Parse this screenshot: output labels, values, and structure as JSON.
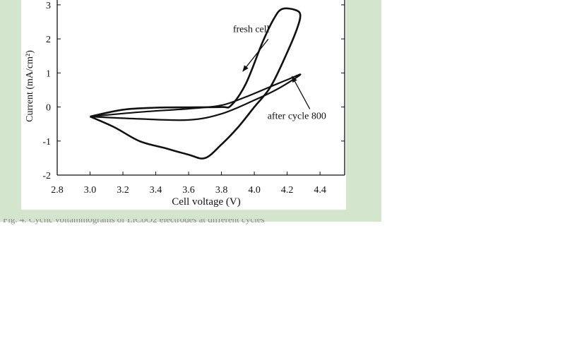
{
  "chart_data": {
    "type": "line",
    "title": "",
    "xlabel": "Cell voltage (V)",
    "ylabel": "Current (mA/cm²)",
    "xlim": [
      2.8,
      4.55
    ],
    "ylim": [
      -2,
      3.35
    ],
    "xticks": [
      "2.8",
      "3.0",
      "3.2",
      "3.4",
      "3.6",
      "3.8",
      "4.0",
      "4.2",
      "4.4"
    ],
    "yticks": [
      "-2",
      "-1",
      "0",
      "1",
      "2",
      "3"
    ],
    "grid": false,
    "series": [
      {
        "name": "fresh cell",
        "x": [
          3.0,
          3.2,
          3.4,
          3.6,
          3.8,
          3.86,
          3.95,
          4.05,
          4.12,
          4.17,
          4.25,
          4.28,
          4.26,
          4.2,
          4.1,
          4.0,
          3.9,
          3.8,
          3.7,
          3.6,
          3.45,
          3.3,
          3.15,
          3.0
        ],
        "y": [
          -0.28,
          -0.08,
          -0.02,
          -0.01,
          0.0,
          0.05,
          0.7,
          1.9,
          2.6,
          2.88,
          2.85,
          2.7,
          2.3,
          1.6,
          0.6,
          0.0,
          -0.6,
          -1.1,
          -1.5,
          -1.4,
          -1.2,
          -1.0,
          -0.6,
          -0.28
        ]
      },
      {
        "name": "after cycle 800",
        "x": [
          3.0,
          3.3,
          3.6,
          3.8,
          3.95,
          4.1,
          4.2,
          4.28,
          4.15,
          4.0,
          3.8,
          3.6,
          3.3,
          3.0
        ],
        "y": [
          -0.28,
          -0.15,
          -0.05,
          0.05,
          0.3,
          0.6,
          0.8,
          0.95,
          0.55,
          0.2,
          -0.2,
          -0.38,
          -0.35,
          -0.28
        ]
      }
    ],
    "annotations": [
      {
        "text": "fresh cell",
        "x": 3.87,
        "y": 2.2,
        "arrow_to": [
          3.93,
          1.05
        ]
      },
      {
        "text": "after cycle 800",
        "x": 4.08,
        "y": -0.35,
        "arrow_to": [
          4.23,
          0.9
        ]
      }
    ]
  },
  "caption": "Fig. 4. Cyclic voltammograms of LiCoO2 electrodes at different cycles"
}
